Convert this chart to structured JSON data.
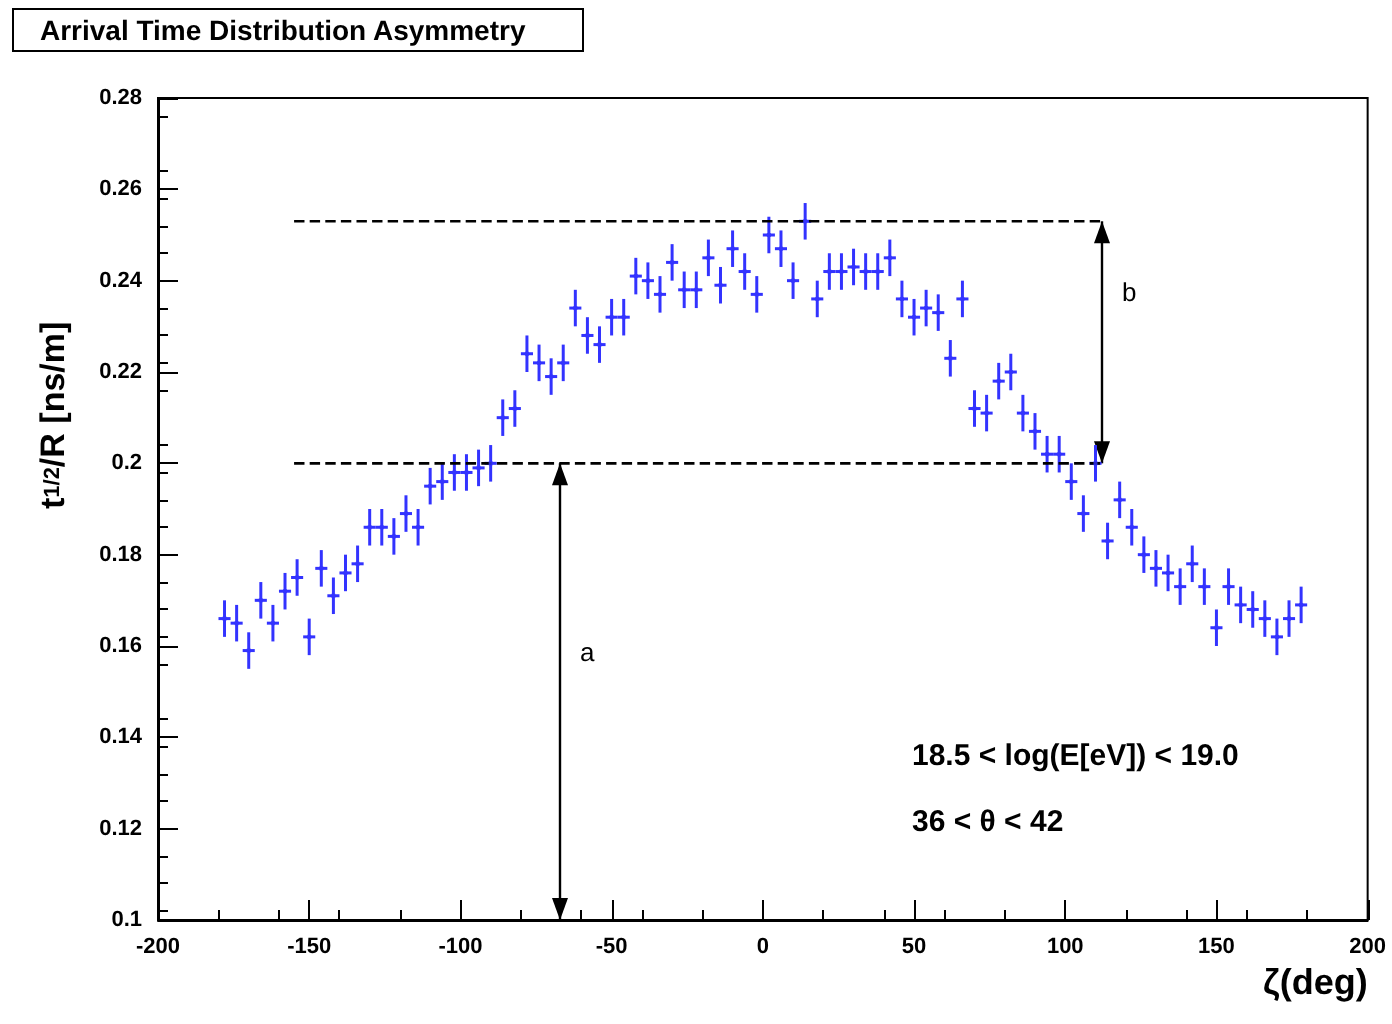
{
  "chart_data": {
    "type": "scatter",
    "title": "Arrival Time Distribution Asymmetry",
    "xlabel": "ζ(deg)",
    "ylabel": "t$_{1/2}$/R [ns/m]",
    "xlim": [
      -200,
      200
    ],
    "xticks": [
      -200,
      -150,
      -100,
      -50,
      0,
      50,
      100,
      150,
      200
    ],
    "ylim": [
      0.1,
      0.28
    ],
    "yticks": [
      0.1,
      0.12,
      0.14,
      0.16,
      0.18,
      0.2,
      0.22,
      0.24,
      0.26,
      0.28
    ],
    "grid": false,
    "series": [
      {
        "color": "#3333ff",
        "x": [
          -178,
          -174,
          -170,
          -166,
          -162,
          -158,
          -154,
          -150,
          -146,
          -142,
          -138,
          -134,
          -130,
          -126,
          -122,
          -118,
          -114,
          -110,
          -106,
          -102,
          -98,
          -94,
          -90,
          -86,
          -82,
          -78,
          -74,
          -70,
          -66,
          -62,
          -58,
          -54,
          -50,
          -46,
          -42,
          -38,
          -34,
          -30,
          -26,
          -22,
          -18,
          -14,
          -10,
          -6,
          -2,
          2,
          6,
          10,
          14,
          18,
          22,
          26,
          30,
          34,
          38,
          42,
          46,
          50,
          54,
          58,
          62,
          66,
          70,
          74,
          78,
          82,
          86,
          90,
          94,
          98,
          102,
          106,
          110,
          114,
          118,
          122,
          126,
          130,
          134,
          138,
          142,
          146,
          150,
          154,
          158,
          162,
          166,
          170,
          174,
          178
        ],
        "values": [
          0.166,
          0.165,
          0.159,
          0.17,
          0.165,
          0.172,
          0.175,
          0.162,
          0.177,
          0.171,
          0.176,
          0.178,
          0.186,
          0.186,
          0.184,
          0.189,
          0.186,
          0.195,
          0.196,
          0.198,
          0.198,
          0.199,
          0.2,
          0.21,
          0.212,
          0.224,
          0.222,
          0.219,
          0.222,
          0.234,
          0.228,
          0.226,
          0.232,
          0.232,
          0.241,
          0.24,
          0.237,
          0.244,
          0.238,
          0.238,
          0.245,
          0.239,
          0.247,
          0.242,
          0.237,
          0.25,
          0.247,
          0.24,
          0.253,
          0.236,
          0.242,
          0.242,
          0.243,
          0.242,
          0.242,
          0.245,
          0.236,
          0.232,
          0.234,
          0.233,
          0.223,
          0.236,
          0.212,
          0.211,
          0.218,
          0.22,
          0.211,
          0.207,
          0.202,
          0.202,
          0.196,
          0.189,
          0.2,
          0.183,
          0.192,
          0.186,
          0.18,
          0.177,
          0.176,
          0.173,
          0.178,
          0.173,
          0.164,
          0.173,
          0.169,
          0.168,
          0.166,
          0.162,
          0.166,
          0.169
        ],
        "errors": [
          0.004,
          0.004,
          0.004,
          0.004,
          0.004,
          0.004,
          0.004,
          0.004,
          0.004,
          0.004,
          0.004,
          0.004,
          0.004,
          0.004,
          0.004,
          0.004,
          0.004,
          0.004,
          0.004,
          0.004,
          0.004,
          0.004,
          0.004,
          0.004,
          0.004,
          0.004,
          0.004,
          0.004,
          0.004,
          0.004,
          0.004,
          0.004,
          0.004,
          0.004,
          0.004,
          0.004,
          0.004,
          0.004,
          0.004,
          0.004,
          0.004,
          0.004,
          0.004,
          0.004,
          0.004,
          0.004,
          0.004,
          0.004,
          0.004,
          0.004,
          0.004,
          0.004,
          0.004,
          0.004,
          0.004,
          0.004,
          0.004,
          0.004,
          0.004,
          0.004,
          0.004,
          0.004,
          0.004,
          0.004,
          0.004,
          0.004,
          0.004,
          0.004,
          0.004,
          0.004,
          0.004,
          0.004,
          0.004,
          0.004,
          0.004,
          0.004,
          0.004,
          0.004,
          0.004,
          0.004,
          0.004,
          0.004,
          0.004,
          0.004,
          0.004,
          0.004,
          0.004,
          0.004,
          0.004,
          0.004
        ],
        "xerrors": [
          2,
          2,
          2,
          2,
          2,
          2,
          2,
          2,
          2,
          2,
          2,
          2,
          2,
          2,
          2,
          2,
          2,
          2,
          2,
          2,
          2,
          2,
          2,
          2,
          2,
          2,
          2,
          2,
          2,
          2,
          2,
          2,
          2,
          2,
          2,
          2,
          2,
          2,
          2,
          2,
          2,
          2,
          2,
          2,
          2,
          2,
          2,
          2,
          2,
          2,
          2,
          2,
          2,
          2,
          2,
          2,
          2,
          2,
          2,
          2,
          2,
          2,
          2,
          2,
          2,
          2,
          2,
          2,
          2,
          2,
          2,
          2,
          2,
          2,
          2,
          2,
          2,
          2,
          2,
          2,
          2,
          2,
          2,
          2,
          2,
          2,
          2,
          2,
          2,
          2
        ]
      },
      {
        "type": "line",
        "color": "#000000",
        "line_style": "dashed",
        "x": [
          -155,
          112
        ],
        "values": [
          0.253,
          0.253
        ]
      },
      {
        "type": "line",
        "color": "#000000",
        "line_style": "dashed",
        "x": [
          -155,
          112
        ],
        "values": [
          0.2,
          0.2
        ]
      }
    ],
    "annotations": [
      "a",
      "b",
      "18.5 < log(E[eV]) < 19.0",
      "36 < θ < 42"
    ]
  }
}
